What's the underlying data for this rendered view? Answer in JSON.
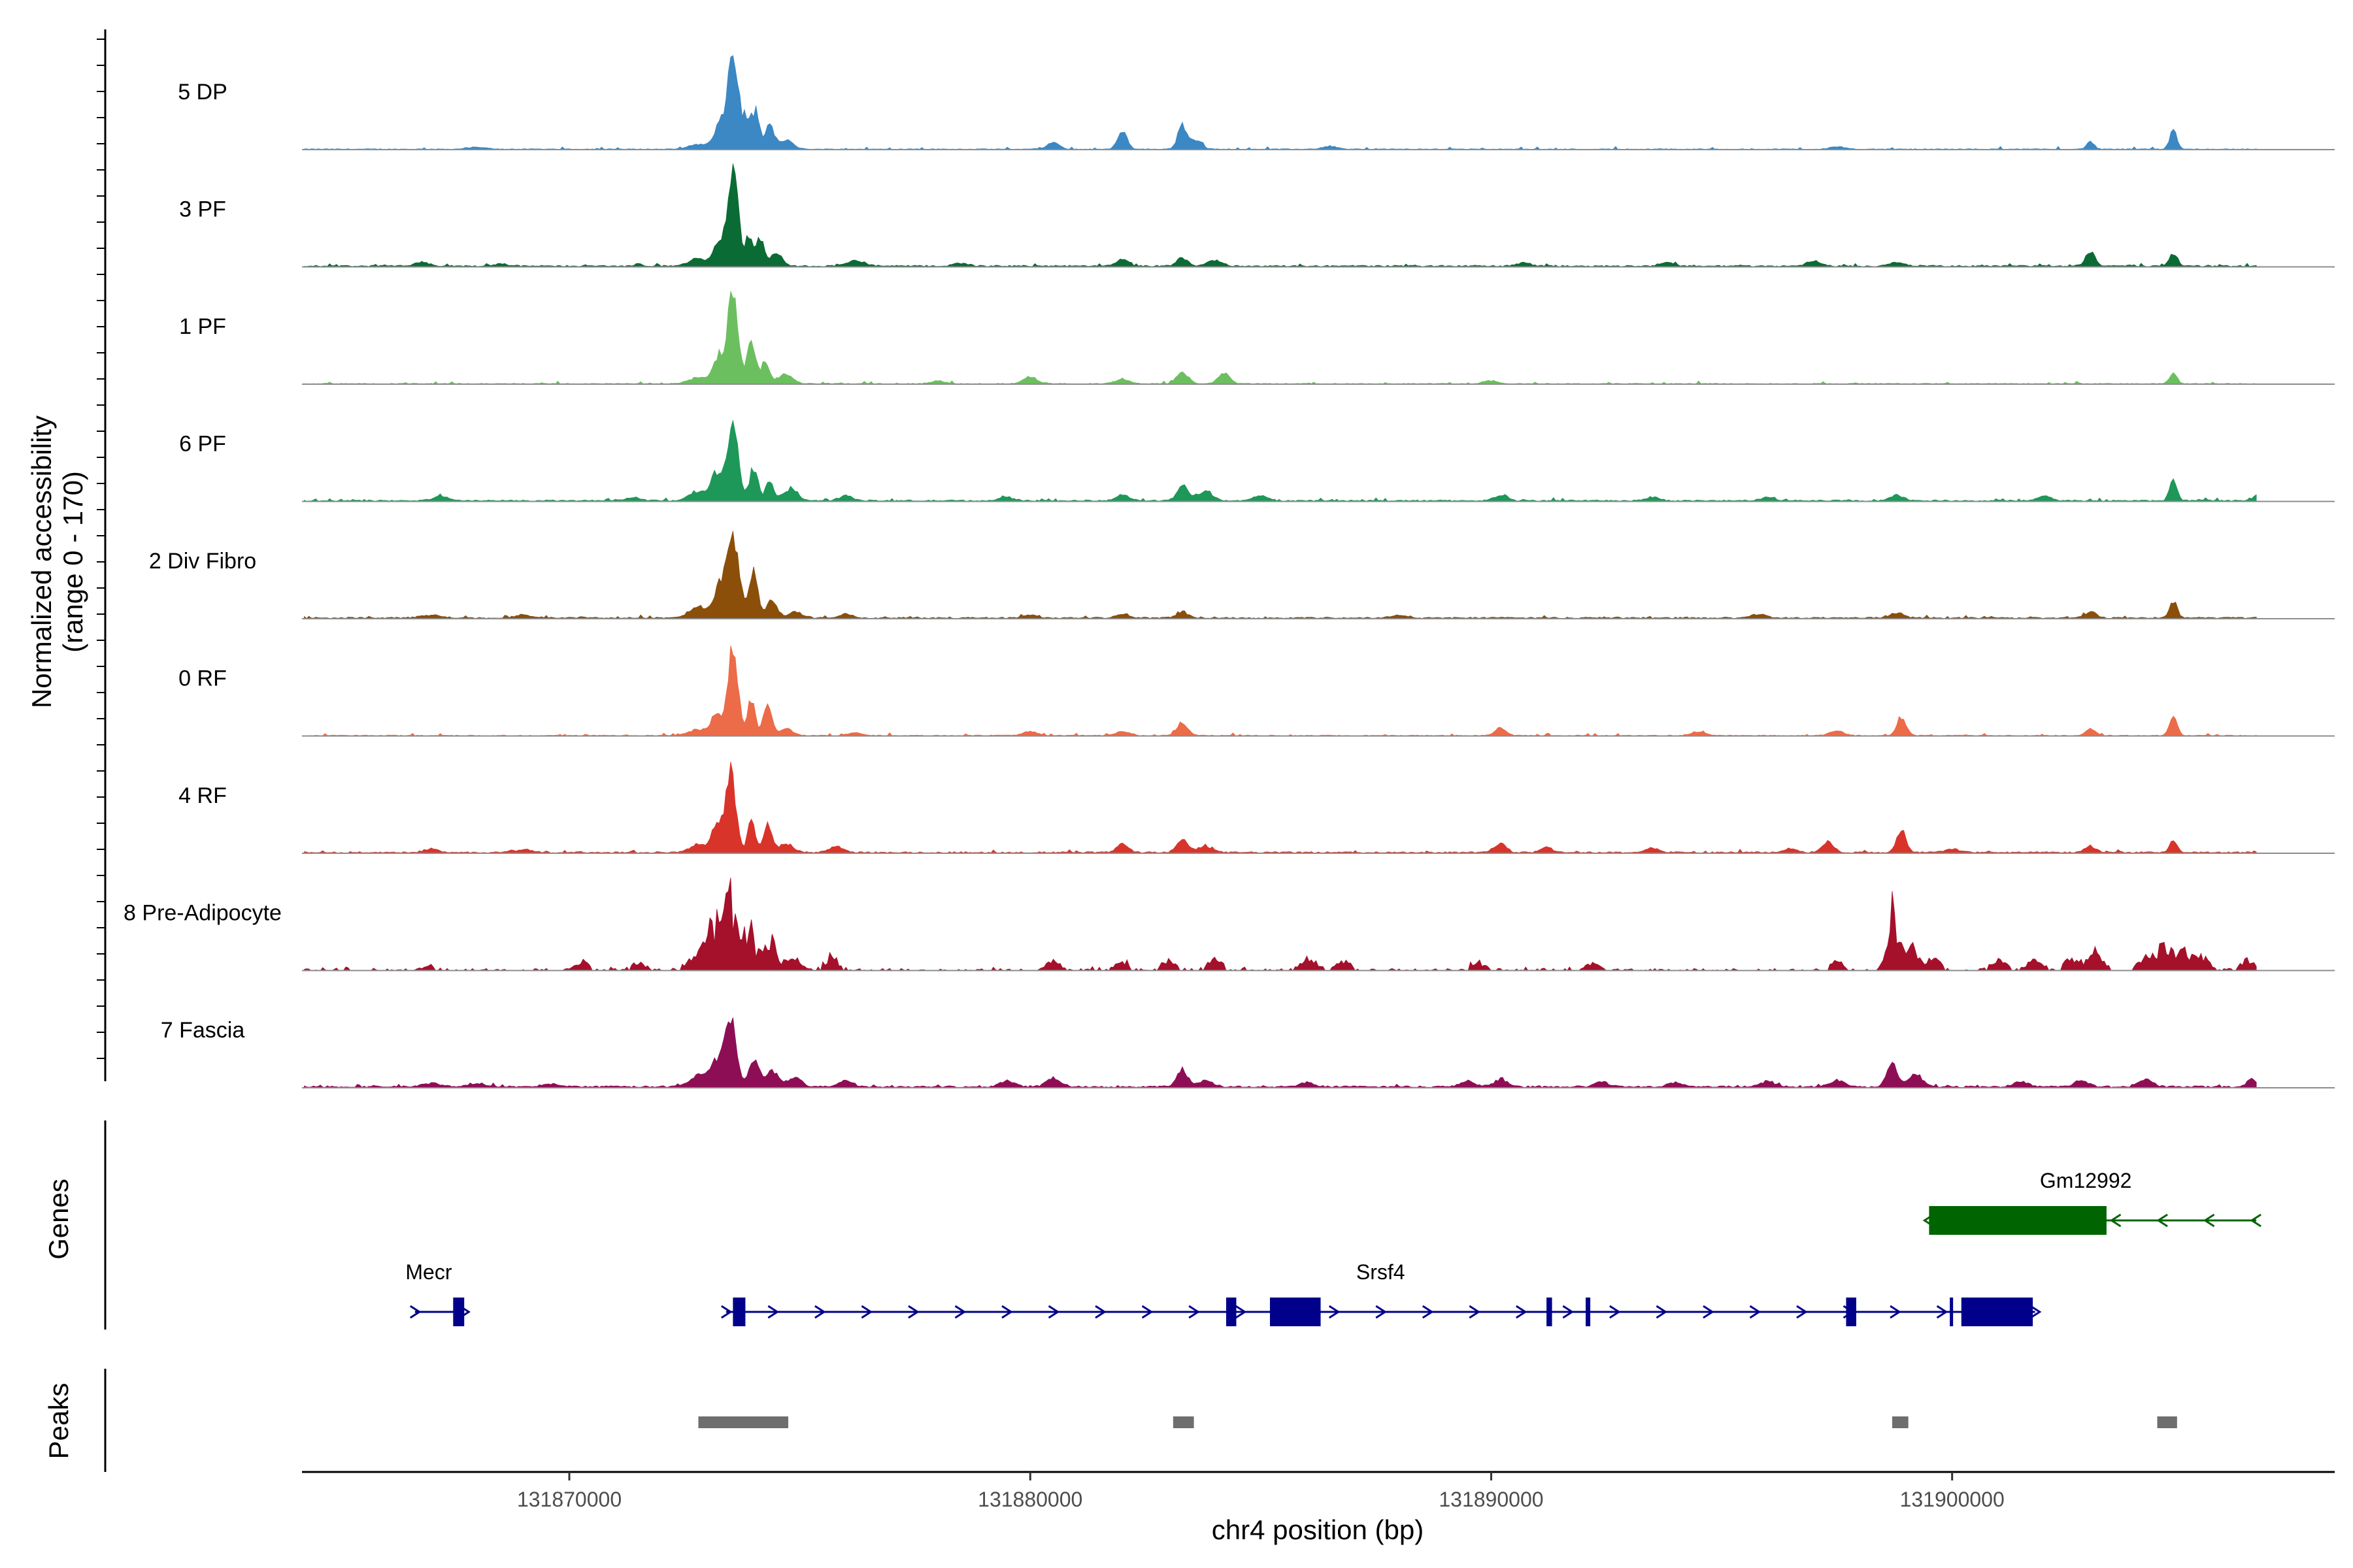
{
  "chart_data": {
    "type": "area",
    "title": "",
    "region": {
      "chrom": "chr4",
      "start": 131864200,
      "end": 131908300
    },
    "ylabel_line1": "Normalized accessibility",
    "ylabel_line2": "(range 0 - 170)",
    "ylim": [
      0,
      170
    ],
    "xlabel": "chr4 position (bp)",
    "xticks": [
      131870000,
      131880000,
      131890000,
      131900000
    ],
    "xtick_labels": [
      "131870000",
      "131880000",
      "131890000",
      "131900000"
    ],
    "genes_label": "Genes",
    "peaks_label": "Peaks",
    "series": [
      {
        "name": "5 DP",
        "color": "#3b88c4",
        "baseline": 0.9,
        "peaks": [
          [
            131873550,
            155,
            120
          ],
          [
            131873250,
            35,
            120
          ],
          [
            131873850,
            45,
            90
          ],
          [
            131874050,
            60,
            80
          ],
          [
            131874350,
            40,
            90
          ],
          [
            131874700,
            15,
            150
          ],
          [
            131872800,
            8,
            200
          ],
          [
            131880500,
            12,
            120
          ],
          [
            131882000,
            30,
            100
          ],
          [
            131883300,
            40,
            100
          ],
          [
            131883600,
            15,
            120
          ],
          [
            131886500,
            5,
            150
          ],
          [
            131897500,
            4,
            150
          ],
          [
            131903000,
            12,
            80
          ],
          [
            131904800,
            30,
            80
          ],
          [
            131868000,
            3,
            200
          ]
        ]
      },
      {
        "name": "3 PF",
        "color": "#0b6b35",
        "baseline": 1.6,
        "peaks": [
          [
            131873550,
            165,
            110
          ],
          [
            131873250,
            40,
            110
          ],
          [
            131873900,
            50,
            80
          ],
          [
            131874150,
            45,
            80
          ],
          [
            131874500,
            22,
            120
          ],
          [
            131872800,
            12,
            200
          ],
          [
            131876200,
            8,
            200
          ],
          [
            131882000,
            12,
            120
          ],
          [
            131883300,
            14,
            120
          ],
          [
            131884000,
            10,
            150
          ],
          [
            131890700,
            6,
            150
          ],
          [
            131893800,
            6,
            150
          ],
          [
            131897000,
            8,
            150
          ],
          [
            131898800,
            6,
            150
          ],
          [
            131903000,
            25,
            100
          ],
          [
            131904800,
            22,
            80
          ],
          [
            131866800,
            6,
            150
          ],
          [
            131868500,
            4,
            150
          ],
          [
            131878500,
            5,
            150
          ]
        ]
      },
      {
        "name": "1 PF",
        "color": "#6cbf5f",
        "baseline": 0.9,
        "peaks": [
          [
            131873550,
            145,
            110
          ],
          [
            131873250,
            45,
            120
          ],
          [
            131873950,
            70,
            90
          ],
          [
            131874250,
            35,
            90
          ],
          [
            131874700,
            15,
            150
          ],
          [
            131872800,
            10,
            200
          ],
          [
            131880000,
            10,
            150
          ],
          [
            131882000,
            8,
            150
          ],
          [
            131883300,
            20,
            120
          ],
          [
            131884200,
            18,
            120
          ],
          [
            131878000,
            5,
            150
          ],
          [
            131890000,
            5,
            150
          ],
          [
            131904800,
            18,
            80
          ]
        ]
      },
      {
        "name": "6 PF",
        "color": "#1d9858",
        "baseline": 1.5,
        "peaks": [
          [
            131873550,
            120,
            120
          ],
          [
            131873200,
            45,
            120
          ],
          [
            131874000,
            55,
            90
          ],
          [
            131874350,
            30,
            90
          ],
          [
            131874800,
            20,
            150
          ],
          [
            131872800,
            15,
            200
          ],
          [
            131876000,
            8,
            150
          ],
          [
            131879500,
            6,
            150
          ],
          [
            131882000,
            9,
            150
          ],
          [
            131883300,
            25,
            120
          ],
          [
            131883800,
            15,
            150
          ],
          [
            131885000,
            8,
            150
          ],
          [
            131890200,
            8,
            150
          ],
          [
            131893500,
            6,
            150
          ],
          [
            131896000,
            5,
            150
          ],
          [
            131898800,
            9,
            150
          ],
          [
            131902000,
            7,
            150
          ],
          [
            131904800,
            34,
            80
          ],
          [
            131906600,
            8,
            80
          ],
          [
            131867200,
            7,
            150
          ],
          [
            131871400,
            5,
            150
          ]
        ]
      },
      {
        "name": "2 Div Fibro",
        "color": "#8b4f0a",
        "baseline": 1.6,
        "peaks": [
          [
            131873550,
            135,
            130
          ],
          [
            131873250,
            50,
            120
          ],
          [
            131874000,
            85,
            90
          ],
          [
            131874400,
            30,
            110
          ],
          [
            131872800,
            18,
            200
          ],
          [
            131874900,
            10,
            150
          ],
          [
            131883300,
            10,
            120
          ],
          [
            131882000,
            6,
            150
          ],
          [
            131876000,
            6,
            150
          ],
          [
            131880000,
            5,
            150
          ],
          [
            131888000,
            5,
            150
          ],
          [
            131895800,
            6,
            150
          ],
          [
            131898800,
            8,
            150
          ],
          [
            131903000,
            10,
            120
          ],
          [
            131904800,
            28,
            80
          ],
          [
            131867000,
            5,
            200
          ],
          [
            131869000,
            4,
            200
          ]
        ]
      },
      {
        "name": "0 RF",
        "color": "#ec6b48",
        "baseline": 0.9,
        "peaks": [
          [
            131873550,
            145,
            110
          ],
          [
            131873200,
            35,
            120
          ],
          [
            131873950,
            60,
            80
          ],
          [
            131874300,
            50,
            90
          ],
          [
            131874700,
            12,
            150
          ],
          [
            131872800,
            10,
            200
          ],
          [
            131883300,
            20,
            120
          ],
          [
            131880000,
            6,
            150
          ],
          [
            131882000,
            7,
            150
          ],
          [
            131890200,
            12,
            120
          ],
          [
            131894500,
            6,
            150
          ],
          [
            131897500,
            8,
            150
          ],
          [
            131898900,
            30,
            100
          ],
          [
            131903000,
            12,
            100
          ],
          [
            131904800,
            33,
            80
          ],
          [
            131876200,
            5,
            150
          ]
        ]
      },
      {
        "name": "4 RF",
        "color": "#d9342a",
        "baseline": 1.6,
        "peaks": [
          [
            131873500,
            135,
            110
          ],
          [
            131873200,
            40,
            120
          ],
          [
            131873950,
            55,
            80
          ],
          [
            131874300,
            45,
            90
          ],
          [
            131874700,
            15,
            150
          ],
          [
            131872800,
            12,
            200
          ],
          [
            131875800,
            10,
            150
          ],
          [
            131882000,
            15,
            120
          ],
          [
            131883300,
            22,
            120
          ],
          [
            131883800,
            10,
            150
          ],
          [
            131890200,
            15,
            120
          ],
          [
            131891200,
            10,
            120
          ],
          [
            131893500,
            6,
            150
          ],
          [
            131896500,
            6,
            150
          ],
          [
            131897300,
            18,
            120
          ],
          [
            131898900,
            35,
            100
          ],
          [
            131900000,
            6,
            150
          ],
          [
            131903000,
            10,
            120
          ],
          [
            131904800,
            20,
            80
          ],
          [
            131867000,
            6,
            150
          ],
          [
            131869000,
            5,
            150
          ]
        ]
      },
      {
        "name": "8 Pre-Adipocyte",
        "color": "#a5102a",
        "baseline": 2.0,
        "noisy": true,
        "peaks": [
          [
            131873450,
            120,
            160
          ],
          [
            131873100,
            50,
            160
          ],
          [
            131873900,
            70,
            120
          ],
          [
            131874350,
            48,
            140
          ],
          [
            131872800,
            30,
            200
          ],
          [
            131874850,
            22,
            150
          ],
          [
            131875700,
            20,
            150
          ],
          [
            131867000,
            8,
            100
          ],
          [
            131870300,
            12,
            150
          ],
          [
            131871500,
            10,
            150
          ],
          [
            131880500,
            14,
            150
          ],
          [
            131882000,
            12,
            150
          ],
          [
            131883000,
            16,
            150
          ],
          [
            131884000,
            18,
            150
          ],
          [
            131886000,
            18,
            150
          ],
          [
            131886800,
            14,
            150
          ],
          [
            131889700,
            10,
            150
          ],
          [
            131892200,
            10,
            150
          ],
          [
            131897500,
            14,
            150
          ],
          [
            131898700,
            100,
            110
          ],
          [
            131899100,
            40,
            150
          ],
          [
            131899600,
            18,
            150
          ],
          [
            131901000,
            16,
            150
          ],
          [
            131901800,
            16,
            150
          ],
          [
            131902600,
            20,
            150
          ],
          [
            131903100,
            28,
            150
          ],
          [
            131904200,
            24,
            150
          ],
          [
            131904600,
            36,
            150
          ],
          [
            131905000,
            30,
            150
          ],
          [
            131905400,
            22,
            150
          ],
          [
            131906400,
            16,
            150
          ]
        ]
      },
      {
        "name": "7 Fascia",
        "color": "#8e0e55",
        "baseline": 2.0,
        "peaks": [
          [
            131873500,
            115,
            120
          ],
          [
            131873200,
            40,
            140
          ],
          [
            131874000,
            45,
            110
          ],
          [
            131874400,
            25,
            140
          ],
          [
            131874900,
            15,
            150
          ],
          [
            131872800,
            18,
            200
          ],
          [
            131876000,
            10,
            150
          ],
          [
            131879500,
            10,
            150
          ],
          [
            131880500,
            14,
            150
          ],
          [
            131883300,
            28,
            120
          ],
          [
            131883800,
            10,
            150
          ],
          [
            131886000,
            7,
            150
          ],
          [
            131889500,
            9,
            150
          ],
          [
            131890200,
            12,
            150
          ],
          [
            131892400,
            8,
            150
          ],
          [
            131894000,
            7,
            150
          ],
          [
            131896000,
            9,
            150
          ],
          [
            131897500,
            10,
            150
          ],
          [
            131898700,
            38,
            110
          ],
          [
            131899200,
            20,
            150
          ],
          [
            131901500,
            8,
            150
          ],
          [
            131902800,
            10,
            150
          ],
          [
            131904200,
            12,
            150
          ],
          [
            131906500,
            12,
            100
          ],
          [
            131867000,
            5,
            200
          ],
          [
            131868000,
            5,
            200
          ],
          [
            131869600,
            4,
            200
          ]
        ]
      }
    ],
    "genes": [
      {
        "name": "Mecr",
        "strand": "+",
        "color": "#00008b",
        "row": 2,
        "start": 131866650,
        "end": 131867720,
        "exons": [
          [
            131867480,
            131867720
          ]
        ]
      },
      {
        "name": "Srsf4",
        "strand": "+",
        "color": "#00008b",
        "row": 2,
        "start": 131873400,
        "end": 131901800,
        "exons": [
          [
            131873550,
            131873820
          ],
          [
            131884250,
            131884470
          ],
          [
            131885200,
            131886300
          ],
          [
            131891200,
            131891320
          ],
          [
            131892050,
            131892150
          ],
          [
            131897700,
            131897920
          ],
          [
            131899950,
            131900020
          ],
          [
            131900200,
            131901750
          ]
        ]
      },
      {
        "name": "Gm12992",
        "strand": "-",
        "color": "#006400",
        "row": 1,
        "start": 131899500,
        "end": 131906600,
        "exons": [
          [
            131899500,
            131903350
          ]
        ]
      }
    ],
    "peak_regions": [
      [
        131872800,
        131874750
      ],
      [
        131883100,
        131883550
      ],
      [
        131898700,
        131899050
      ],
      [
        131904450,
        131904880
      ]
    ]
  }
}
